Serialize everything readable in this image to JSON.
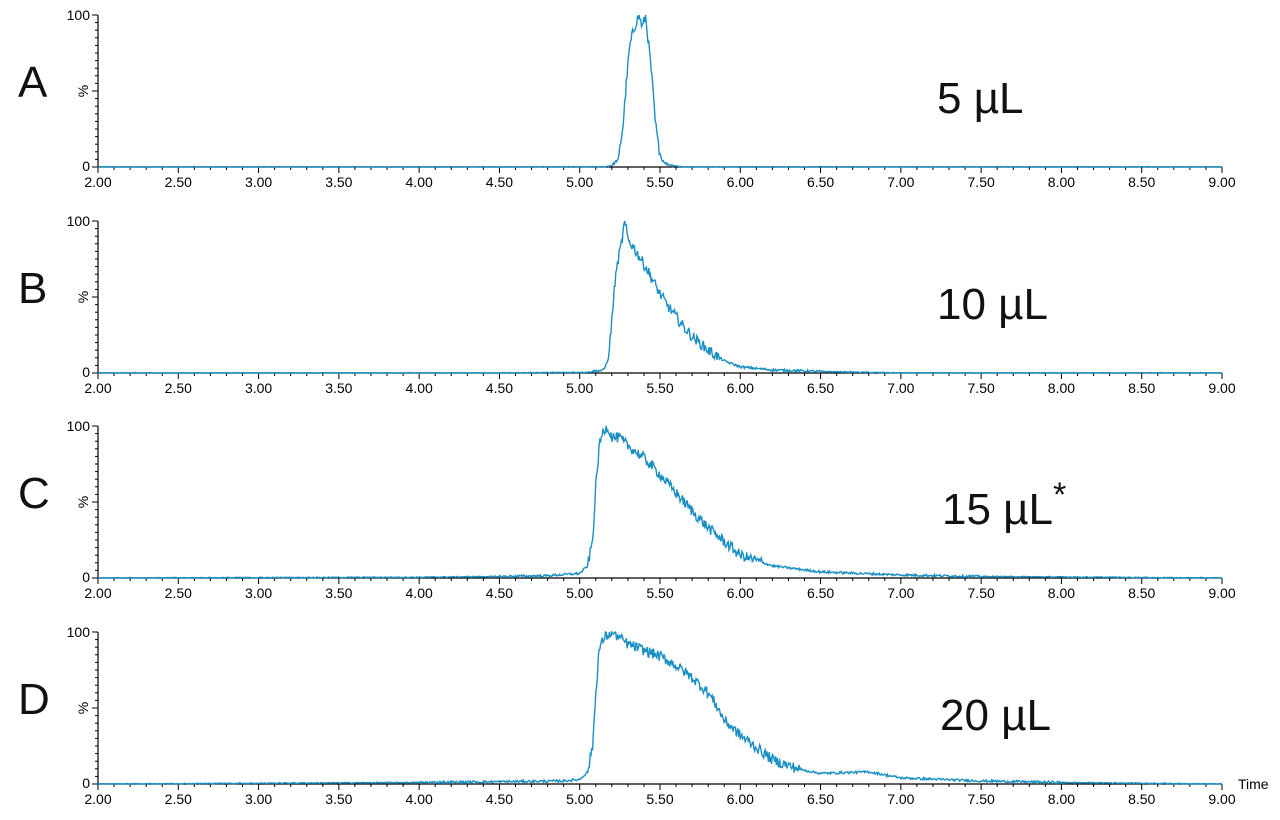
{
  "colors": {
    "trace": "#1a8fc4",
    "axis": "#000000"
  },
  "x_axis_label": "Time",
  "chart_data": [
    {
      "type": "line",
      "panel_letter": "A",
      "annotation": "5 µL",
      "marker": "",
      "y_ticks": [
        "0",
        "%",
        "100"
      ],
      "ylim": [
        0,
        100
      ],
      "xlim": [
        2.0,
        9.0
      ],
      "x_ticks": [
        "2.00",
        "2.50",
        "3.00",
        "3.50",
        "4.00",
        "4.50",
        "5.00",
        "5.50",
        "6.00",
        "6.50",
        "7.00",
        "7.50",
        "8.00",
        "8.50",
        "9.00"
      ],
      "x": [
        2.0,
        4.5,
        5.15,
        5.2,
        5.24,
        5.27,
        5.29,
        5.31,
        5.33,
        5.35,
        5.37,
        5.39,
        5.41,
        5.43,
        5.45,
        5.47,
        5.49,
        5.51,
        5.54,
        5.58,
        5.65,
        9.0
      ],
      "y": [
        0,
        0,
        0,
        1,
        5,
        28,
        55,
        78,
        88,
        95,
        100,
        92,
        99,
        80,
        58,
        30,
        14,
        5,
        2,
        1,
        0,
        0
      ]
    },
    {
      "type": "line",
      "panel_letter": "B",
      "annotation": "10 µL",
      "marker": "",
      "y_ticks": [
        "0",
        "%",
        "100"
      ],
      "ylim": [
        0,
        100
      ],
      "xlim": [
        2.0,
        9.0
      ],
      "x_ticks": [
        "2.00",
        "2.50",
        "3.00",
        "3.50",
        "4.00",
        "4.50",
        "5.00",
        "5.50",
        "6.00",
        "6.50",
        "7.00",
        "7.50",
        "8.00",
        "8.50",
        "9.00"
      ],
      "x": [
        2.0,
        4.5,
        5.05,
        5.15,
        5.18,
        5.2,
        5.22,
        5.24,
        5.26,
        5.28,
        5.3,
        5.34,
        5.38,
        5.42,
        5.46,
        5.5,
        5.55,
        5.6,
        5.65,
        5.7,
        5.8,
        5.9,
        6.0,
        6.2,
        6.5,
        7.0,
        9.0
      ],
      "y": [
        0,
        0,
        0.5,
        2,
        10,
        35,
        60,
        75,
        85,
        100,
        88,
        82,
        75,
        68,
        60,
        52,
        44,
        37,
        30,
        24,
        15,
        8,
        4,
        2,
        1,
        0,
        0
      ]
    },
    {
      "type": "line",
      "panel_letter": "C",
      "annotation": "15 µL",
      "marker": "*",
      "y_ticks": [
        "0",
        "%",
        "100"
      ],
      "ylim": [
        0,
        100
      ],
      "xlim": [
        2.0,
        9.0
      ],
      "x_ticks": [
        "2.00",
        "2.50",
        "3.00",
        "3.50",
        "4.00",
        "4.50",
        "5.00",
        "5.50",
        "6.00",
        "6.50",
        "7.00",
        "7.50",
        "8.00",
        "8.50",
        "9.00"
      ],
      "x": [
        2.0,
        4.0,
        4.5,
        4.8,
        5.0,
        5.05,
        5.08,
        5.1,
        5.12,
        5.14,
        5.17,
        5.2,
        5.25,
        5.3,
        5.4,
        5.5,
        5.6,
        5.7,
        5.8,
        5.9,
        6.0,
        6.2,
        6.5,
        7.0,
        7.5,
        9.0
      ],
      "y": [
        0,
        0.5,
        1,
        1.5,
        3,
        8,
        25,
        60,
        85,
        95,
        100,
        93,
        92,
        87,
        79,
        68,
        56,
        44,
        33,
        24,
        15,
        8,
        4,
        2,
        1,
        0
      ]
    },
    {
      "type": "line",
      "panel_letter": "D",
      "annotation": "20 µL",
      "marker": "",
      "y_ticks": [
        "0",
        "%",
        "100"
      ],
      "ylim": [
        0,
        100
      ],
      "xlim": [
        2.0,
        9.0
      ],
      "x_ticks": [
        "2.00",
        "2.50",
        "3.00",
        "3.50",
        "4.00",
        "4.50",
        "5.00",
        "5.50",
        "6.00",
        "6.50",
        "7.00",
        "7.50",
        "8.00",
        "8.50",
        "9.00"
      ],
      "x": [
        2.0,
        4.0,
        4.5,
        4.9,
        5.0,
        5.05,
        5.08,
        5.1,
        5.12,
        5.15,
        5.2,
        5.3,
        5.4,
        5.5,
        5.6,
        5.7,
        5.8,
        5.85,
        5.9,
        6.0,
        6.1,
        6.2,
        6.3,
        6.4,
        6.5,
        6.8,
        7.0,
        7.5,
        8.0,
        9.0
      ],
      "y": [
        0,
        1,
        1.5,
        2,
        3,
        8,
        25,
        60,
        88,
        96,
        100,
        92,
        88,
        84,
        78,
        70,
        60,
        52,
        42,
        32,
        24,
        16,
        12,
        9,
        7,
        8,
        4,
        2,
        1,
        0
      ]
    }
  ]
}
